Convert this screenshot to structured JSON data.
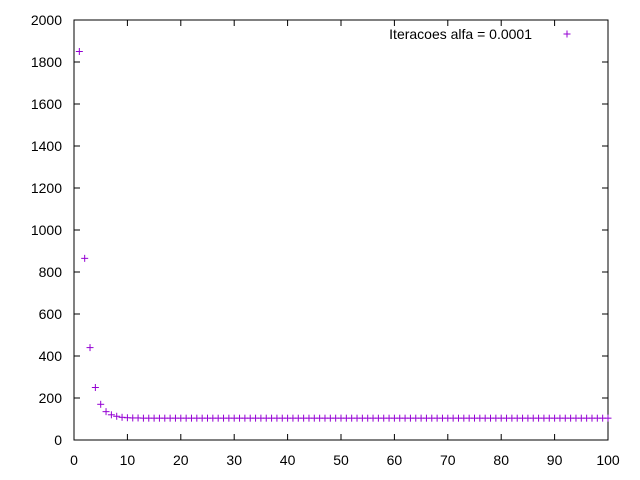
{
  "chart_data": {
    "type": "scatter",
    "title": "",
    "xlabel": "",
    "ylabel": "",
    "xlim": [
      0,
      100
    ],
    "ylim": [
      0,
      2000
    ],
    "x_ticks": [
      "0",
      "10",
      "20",
      "30",
      "40",
      "50",
      "60",
      "70",
      "80",
      "90",
      "100"
    ],
    "y_ticks": [
      "0",
      "200",
      "400",
      "600",
      "800",
      "1000",
      "1200",
      "1400",
      "1600",
      "1800",
      "2000"
    ],
    "grid": false,
    "legend_position": "top-right",
    "series": [
      {
        "name": "Iteracoes alfa = 0.0001",
        "color": "#9400d3",
        "marker": "plus",
        "x": [
          1,
          2,
          3,
          4,
          5,
          6,
          7,
          8,
          9,
          10,
          11,
          12,
          13,
          14,
          15,
          16,
          17,
          18,
          19,
          20,
          21,
          22,
          23,
          24,
          25,
          26,
          27,
          28,
          29,
          30,
          31,
          32,
          33,
          34,
          35,
          36,
          37,
          38,
          39,
          40,
          41,
          42,
          43,
          44,
          45,
          46,
          47,
          48,
          49,
          50,
          51,
          52,
          53,
          54,
          55,
          56,
          57,
          58,
          59,
          60,
          61,
          62,
          63,
          64,
          65,
          66,
          67,
          68,
          69,
          70,
          71,
          72,
          73,
          74,
          75,
          76,
          77,
          78,
          79,
          80,
          81,
          82,
          83,
          84,
          85,
          86,
          87,
          88,
          89,
          90,
          91,
          92,
          93,
          94,
          95,
          96,
          97,
          98,
          99,
          100
        ],
        "y": [
          1850,
          865,
          440,
          250,
          170,
          135,
          120,
          113,
          108,
          106,
          105,
          105,
          104,
          104,
          104,
          104,
          104,
          104,
          104,
          104,
          104,
          104,
          104,
          104,
          104,
          104,
          104,
          104,
          104,
          104,
          104,
          104,
          104,
          104,
          104,
          104,
          104,
          104,
          104,
          104,
          104,
          104,
          104,
          104,
          104,
          104,
          104,
          104,
          104,
          104,
          104,
          104,
          104,
          104,
          104,
          104,
          104,
          104,
          104,
          104,
          104,
          104,
          104,
          104,
          104,
          104,
          104,
          104,
          104,
          104,
          104,
          104,
          104,
          104,
          104,
          104,
          104,
          104,
          104,
          104,
          104,
          104,
          104,
          104,
          104,
          104,
          104,
          104,
          104,
          104,
          104,
          104,
          104,
          104,
          104,
          104,
          104,
          104,
          104,
          104
        ]
      }
    ]
  }
}
